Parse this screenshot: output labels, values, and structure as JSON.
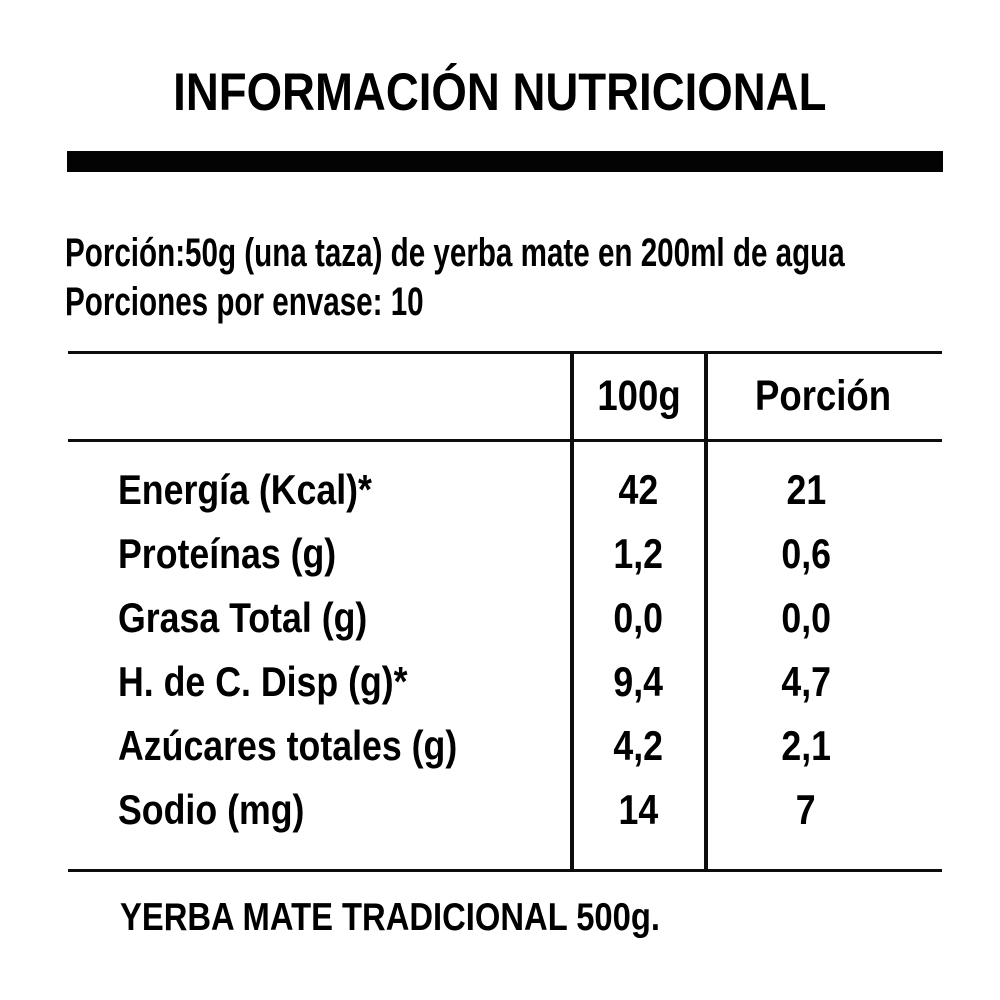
{
  "page": {
    "background_color": "#ffffff",
    "text_color": "#000000",
    "rule_color": "#0d0d0d"
  },
  "title": "INFORMACIÓN NUTRICIONAL",
  "serving": {
    "line1": "Porción:50g (una taza) de yerba mate en 200ml de agua",
    "line2": "Porciones por envase: 10"
  },
  "table": {
    "header": {
      "per_100g": "100g",
      "portion": "Porción"
    },
    "rows": [
      {
        "label": "Energía (Kcal)*",
        "per_100g": "42",
        "portion": "21"
      },
      {
        "label": "Proteínas (g)",
        "per_100g": "1,2",
        "portion": "0,6"
      },
      {
        "label": "Grasa Total (g)",
        "per_100g": "0,0",
        "portion": "0,0"
      },
      {
        "label": "H. de C. Disp (g)*",
        "per_100g": "9,4",
        "portion": "4,7"
      },
      {
        "label": "Azúcares totales (g)",
        "per_100g": "4,2",
        "portion": "2,1"
      },
      {
        "label": "Sodio (mg)",
        "per_100g": "14",
        "portion": "7"
      }
    ]
  },
  "footer": {
    "product": "YERBA MATE TRADICIONAL 500g."
  }
}
